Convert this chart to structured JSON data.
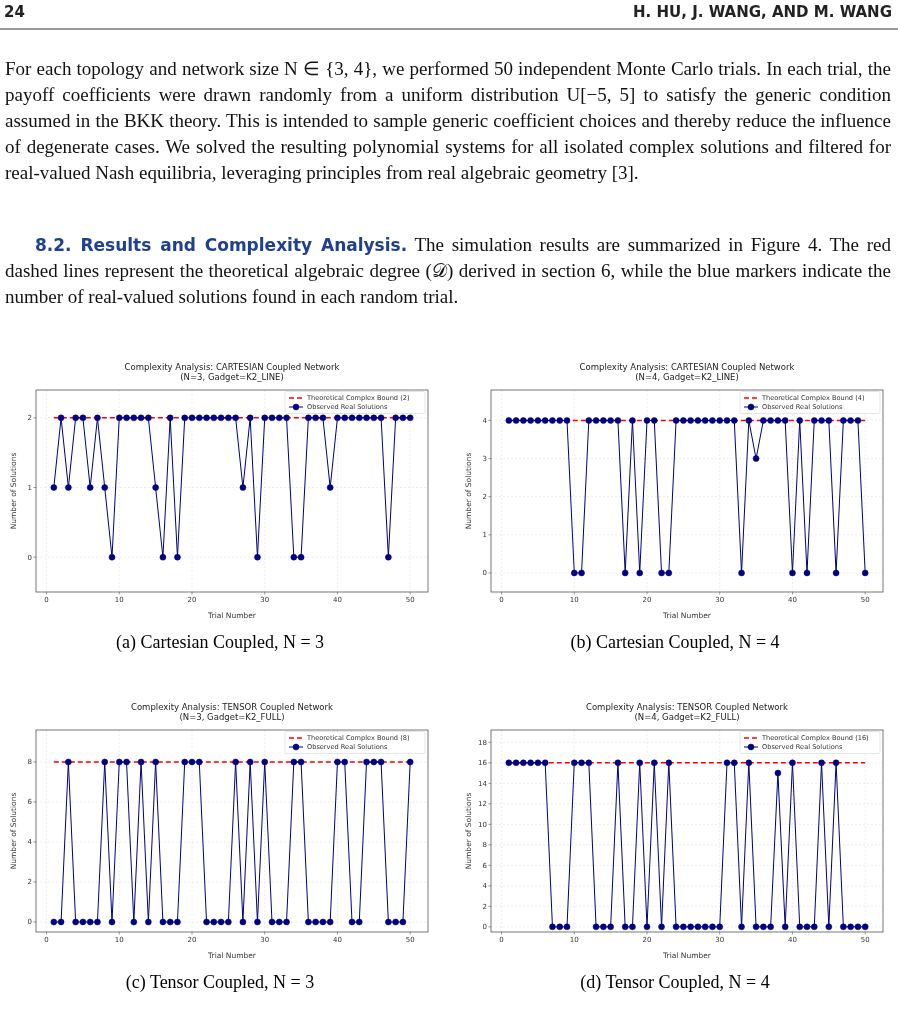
{
  "chart_data": [
    {
      "type": "line",
      "title": "Complexity Analysis: CARTESIAN Coupled Network\n(N=3, Gadget=K2_LINE)",
      "xlabel": "Trial Number",
      "ylabel": "Number of Solutions",
      "x": [
        1,
        2,
        3,
        4,
        5,
        6,
        7,
        8,
        9,
        10,
        11,
        12,
        13,
        14,
        15,
        16,
        17,
        18,
        19,
        20,
        21,
        22,
        23,
        24,
        25,
        26,
        27,
        28,
        29,
        30,
        31,
        32,
        33,
        34,
        35,
        36,
        37,
        38,
        39,
        40,
        41,
        42,
        43,
        44,
        45,
        46,
        47,
        48,
        49,
        50
      ],
      "series": [
        {
          "name": "Observed Real Solutions",
          "color": "#000080",
          "values": [
            1,
            2,
            1,
            2,
            2,
            1,
            2,
            1,
            0,
            2,
            2,
            2,
            2,
            2,
            1,
            0,
            2,
            0,
            2,
            2,
            2,
            2,
            2,
            2,
            2,
            2,
            1,
            2,
            0,
            2,
            2,
            2,
            2,
            0,
            0,
            2,
            2,
            2,
            1,
            2,
            2,
            2,
            2,
            2,
            2,
            2,
            0,
            2,
            2,
            2
          ]
        }
      ],
      "ref_lines": [
        {
          "axis": "y",
          "value": 2,
          "label": "Theoretical Complex Bound (2)",
          "color": "#ff0000",
          "line_style": "dashed"
        }
      ],
      "xlim": [
        -1.45,
        52.45
      ],
      "xticks": [
        0,
        10,
        20,
        30,
        40,
        50
      ],
      "ylim": [
        -0.5,
        2.4
      ],
      "yticks": [
        0,
        1,
        2
      ],
      "grid": true,
      "legend": "top right",
      "marker": "circle",
      "annotations": [
        "24",
        "H. HU, J. WANG, AND M. WANG",
        "For each topology and network size N ∈ {3, 4}, we performed 50 independent Monte Carlo trials. In each trial, the payoff coefficients were drawn randomly from a uniform distribution U[−5, 5] to satisfy the generic condition assumed in the BKK theory. This is intended to sample generic coefficient choices and thereby reduce the influence of degenerate cases. We solved the resulting polynomial systems for all isolated complex solutions and filtered for real-valued Nash equilibria, leveraging principles from real algebraic geometry [3].",
        "8.2. Results and Complexity Analysis.",
        "The simulation results are summarized in Figure 4. The red dashed lines represent the theoretical algebraic degree (𝒟) derived in section 6, while the blue markers indicate the number of real-valued solutions found in each random trial.",
        "(a) Cartesian Coupled, N = 3"
      ]
    },
    {
      "type": "line",
      "title": "Complexity Analysis: CARTESIAN Coupled Network\n(N=4, Gadget=K2_LINE)",
      "xlabel": "Trial Number",
      "ylabel": "Number of Solutions",
      "x": [
        1,
        2,
        3,
        4,
        5,
        6,
        7,
        8,
        9,
        10,
        11,
        12,
        13,
        14,
        15,
        16,
        17,
        18,
        19,
        20,
        21,
        22,
        23,
        24,
        25,
        26,
        27,
        28,
        29,
        30,
        31,
        32,
        33,
        34,
        35,
        36,
        37,
        38,
        39,
        40,
        41,
        42,
        43,
        44,
        45,
        46,
        47,
        48,
        49,
        50
      ],
      "series": [
        {
          "name": "Observed Real Solutions",
          "color": "#000080",
          "values": [
            4,
            4,
            4,
            4,
            4,
            4,
            4,
            4,
            4,
            0,
            0,
            4,
            4,
            4,
            4,
            4,
            0,
            4,
            0,
            4,
            4,
            0,
            0,
            4,
            4,
            4,
            4,
            4,
            4,
            4,
            4,
            4,
            0,
            4,
            3,
            4,
            4,
            4,
            4,
            0,
            4,
            0,
            4,
            4,
            4,
            0,
            4,
            4,
            4,
            0
          ]
        }
      ],
      "ref_lines": [
        {
          "axis": "y",
          "value": 4,
          "label": "Theoretical Complex Bound (4)",
          "color": "#ff0000",
          "line_style": "dashed"
        }
      ],
      "xlim": [
        -1.45,
        52.45
      ],
      "xticks": [
        0,
        10,
        20,
        30,
        40,
        50
      ],
      "ylim": [
        -0.5,
        4.8
      ],
      "yticks": [
        0,
        1,
        2,
        3,
        4
      ],
      "grid": true,
      "legend": "top right",
      "marker": "circle",
      "annotations": [
        "(b) Cartesian Coupled, N = 4"
      ]
    },
    {
      "type": "line",
      "title": "Complexity Analysis: TENSOR Coupled Network\n(N=3, Gadget=K2_FULL)",
      "xlabel": "Trial Number",
      "ylabel": "Number of Solutions",
      "x": [
        1,
        2,
        3,
        4,
        5,
        6,
        7,
        8,
        9,
        10,
        11,
        12,
        13,
        14,
        15,
        16,
        17,
        18,
        19,
        20,
        21,
        22,
        23,
        24,
        25,
        26,
        27,
        28,
        29,
        30,
        31,
        32,
        33,
        34,
        35,
        36,
        37,
        38,
        39,
        40,
        41,
        42,
        43,
        44,
        45,
        46,
        47,
        48,
        49,
        50
      ],
      "series": [
        {
          "name": "Observed Real Solutions",
          "color": "#000080",
          "values": [
            0,
            0,
            8,
            0,
            0,
            0,
            0,
            8,
            0,
            8,
            8,
            0,
            8,
            0,
            8,
            0,
            0,
            0,
            8,
            8,
            8,
            0,
            0,
            0,
            0,
            8,
            0,
            8,
            0,
            8,
            0,
            0,
            0,
            8,
            8,
            0,
            0,
            0,
            0,
            8,
            8,
            0,
            0,
            8,
            8,
            8,
            0,
            0,
            0,
            8
          ]
        }
      ],
      "ref_lines": [
        {
          "axis": "y",
          "value": 8,
          "label": "Theoretical Complex Bound (8)",
          "color": "#ff0000",
          "line_style": "dashed"
        }
      ],
      "xlim": [
        -1.45,
        52.45
      ],
      "xticks": [
        0,
        10,
        20,
        30,
        40,
        50
      ],
      "ylim": [
        -0.5,
        9.6
      ],
      "yticks": [
        0,
        2,
        4,
        6,
        8
      ],
      "grid": true,
      "legend": "top right",
      "marker": "circle",
      "annotations": [
        "(c) Tensor Coupled, N = 3"
      ]
    },
    {
      "type": "line",
      "title": "Complexity Analysis: TENSOR Coupled Network\n(N=4, Gadget=K2_FULL)",
      "xlabel": "Trial Number",
      "ylabel": "Number of Solutions",
      "x": [
        1,
        2,
        3,
        4,
        5,
        6,
        7,
        8,
        9,
        10,
        11,
        12,
        13,
        14,
        15,
        16,
        17,
        18,
        19,
        20,
        21,
        22,
        23,
        24,
        25,
        26,
        27,
        28,
        29,
        30,
        31,
        32,
        33,
        34,
        35,
        36,
        37,
        38,
        39,
        40,
        41,
        42,
        43,
        44,
        45,
        46,
        47,
        48,
        49,
        50
      ],
      "series": [
        {
          "name": "Observed Real Solutions",
          "color": "#000080",
          "values": [
            16,
            16,
            16,
            16,
            16,
            16,
            0,
            0,
            0,
            16,
            16,
            16,
            0,
            0,
            0,
            16,
            0,
            0,
            16,
            0,
            16,
            0,
            16,
            0,
            0,
            0,
            0,
            0,
            0,
            0,
            16,
            16,
            0,
            16,
            0,
            0,
            0,
            15,
            0,
            16,
            0,
            0,
            0,
            16,
            0,
            16,
            0,
            0,
            0,
            0
          ]
        }
      ],
      "ref_lines": [
        {
          "axis": "y",
          "value": 16,
          "label": "Theoretical Complex Bound (16)",
          "color": "#ff0000",
          "line_style": "dashed"
        }
      ],
      "xlim": [
        -1.45,
        52.45
      ],
      "xticks": [
        0,
        10,
        20,
        30,
        40,
        50
      ],
      "ylim": [
        -0.5,
        19.2
      ],
      "yticks": [
        0,
        2,
        4,
        6,
        8,
        10,
        12,
        14,
        16,
        18
      ],
      "grid": true,
      "legend": "top right",
      "marker": "circle",
      "annotations": [
        "(d) Tensor Coupled, N = 4"
      ]
    }
  ]
}
